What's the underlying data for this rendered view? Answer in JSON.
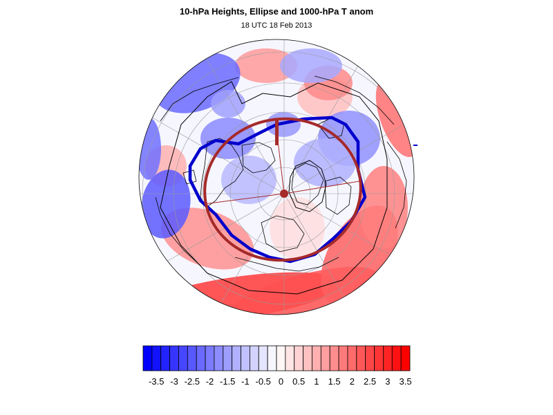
{
  "title": "10-hPa Heights, Ellipse and 1000-hPa T anom",
  "subtitle": "18 UTC 18 Feb 2013",
  "colors": {
    "negative_max": "#0000ff",
    "positive_max": "#ff0000",
    "polar_vortex_contour": "#0000cc",
    "ellipse": "#a52a2a",
    "geopotential_contours": "#000000",
    "coastlines": "#000000",
    "gridlines": "#999999"
  },
  "map": {
    "projection": "north polar stereographic",
    "gridlines": true,
    "features": [
      "temperature-anomaly-shading",
      "coastlines",
      "lat-lon-grid",
      "10hPa-height-contours",
      "polar-vortex-contour",
      "vortex-ellipse",
      "ellipse-axes",
      "ellipse-center"
    ]
  },
  "colorbar": {
    "orientation": "horizontal",
    "labels": [
      "-3.5",
      "-3",
      "-2.5",
      "-2",
      "-1.5",
      "-1",
      "-0.5",
      "0",
      "0.5",
      "1",
      "1.5",
      "2",
      "2.5",
      "3",
      "3.5"
    ],
    "min": -3.75,
    "max": 3.75,
    "step": 0.25
  }
}
